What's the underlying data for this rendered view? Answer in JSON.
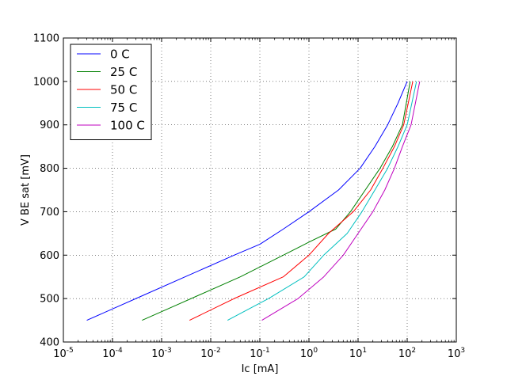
{
  "chart_data": {
    "type": "line",
    "xlabel": "Ic [mA]",
    "ylabel": "V BE sat [mV]",
    "xscale": "log",
    "xlim": [
      1e-05,
      1000
    ],
    "ylim": [
      400,
      1100
    ],
    "grid": true,
    "legend_position": "top-left",
    "x_ticks": [
      {
        "base": "10",
        "exp": "-5",
        "value": 1e-05
      },
      {
        "base": "10",
        "exp": "-4",
        "value": 0.0001
      },
      {
        "base": "10",
        "exp": "-3",
        "value": 0.001
      },
      {
        "base": "10",
        "exp": "-2",
        "value": 0.01
      },
      {
        "base": "10",
        "exp": "-1",
        "value": 0.1
      },
      {
        "base": "10",
        "exp": "0",
        "value": 1
      },
      {
        "base": "10",
        "exp": "1",
        "value": 10
      },
      {
        "base": "10",
        "exp": "2",
        "value": 100
      },
      {
        "base": "10",
        "exp": "3",
        "value": 1000
      }
    ],
    "y_ticks": [
      {
        "label": "400",
        "value": 400
      },
      {
        "label": "500",
        "value": 500
      },
      {
        "label": "600",
        "value": 600
      },
      {
        "label": "700",
        "value": 700
      },
      {
        "label": "800",
        "value": 800
      },
      {
        "label": "900",
        "value": 900
      },
      {
        "label": "1000",
        "value": 1000
      },
      {
        "label": "1100",
        "value": 1100
      }
    ],
    "series": [
      {
        "name": "0 C",
        "color": "#0000ff",
        "x": [
          3e-05,
          0.0003,
          0.003,
          0.03,
          0.1,
          0.3,
          1,
          4,
          11,
          22,
          40,
          65,
          100
        ],
        "y": [
          450,
          500,
          550,
          600,
          625,
          660,
          700,
          750,
          800,
          850,
          900,
          950,
          1000
        ]
      },
      {
        "name": "25 C",
        "color": "#008000",
        "x": [
          0.0004,
          0.004,
          0.04,
          0.3,
          1,
          3.5,
          7,
          14,
          28,
          50,
          80,
          115
        ],
        "y": [
          450,
          500,
          550,
          600,
          630,
          660,
          700,
          750,
          800,
          850,
          900,
          1000
        ]
      },
      {
        "name": "50 C",
        "color": "#ff0000",
        "x": [
          0.0037,
          0.03,
          0.3,
          1,
          2.5,
          8,
          18,
          32,
          55,
          85,
          130
        ],
        "y": [
          450,
          500,
          550,
          600,
          650,
          700,
          750,
          800,
          850,
          900,
          1000
        ]
      },
      {
        "name": "75 C",
        "color": "#00bfbf",
        "x": [
          0.022,
          0.15,
          0.8,
          2,
          6,
          12,
          22,
          40,
          65,
          100,
          155
        ],
        "y": [
          450,
          500,
          550,
          600,
          650,
          700,
          750,
          800,
          850,
          900,
          1000
        ]
      },
      {
        "name": "100 C",
        "color": "#bf00bf",
        "x": [
          0.11,
          0.6,
          2,
          5,
          10,
          20,
          35,
          55,
          80,
          120,
          180
        ],
        "y": [
          450,
          500,
          550,
          600,
          650,
          700,
          750,
          800,
          850,
          900,
          1000
        ]
      }
    ]
  }
}
